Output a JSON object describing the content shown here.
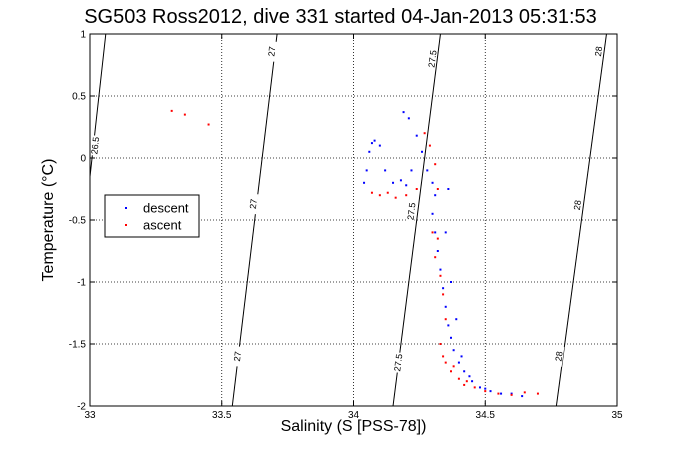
{
  "chart_data": {
    "type": "scatter",
    "title": "SG503 Ross2012, dive 331 started 04-Jan-2013 05:31:53",
    "xlabel": "Salinity (S [PSS-78])",
    "ylabel": "Temperature (°C)",
    "xlim": [
      33,
      35
    ],
    "ylim": [
      -2,
      1
    ],
    "x_ticks": [
      33,
      33.5,
      34,
      34.5,
      35
    ],
    "x_tick_labels": [
      "33",
      "33.5",
      "34",
      "34.5",
      "35"
    ],
    "y_ticks": [
      -2,
      -1.5,
      -1,
      -0.5,
      0,
      0.5,
      1
    ],
    "y_tick_labels": [
      "-2",
      "-1.5",
      "-1",
      "-0.5",
      "0",
      "0.5",
      "1"
    ],
    "grid": true,
    "legend_placement": "middle-left",
    "density_contours": [
      {
        "label": "26.5",
        "points": [
          [
            33.0,
            -0.15
          ],
          [
            33.06,
            1.0
          ]
        ],
        "label_at": [
          33.02,
          0.1
        ]
      },
      {
        "label": "27",
        "points": [
          [
            33.54,
            -2.0
          ],
          [
            33.71,
            1.0
          ]
        ],
        "label_at": [
          [
            33.56,
            -1.6
          ],
          [
            33.62,
            -0.37
          ],
          [
            33.69,
            0.86
          ]
        ]
      },
      {
        "label": "27.5",
        "points": [
          [
            34.15,
            -2.0
          ],
          [
            34.33,
            1.0
          ]
        ],
        "label_at": [
          [
            34.17,
            -1.65
          ],
          [
            34.22,
            -0.43
          ],
          [
            34.3,
            0.8
          ]
        ]
      },
      {
        "label": "28",
        "points": [
          [
            34.77,
            -2.0
          ],
          [
            34.96,
            1.0
          ]
        ],
        "label_at": [
          [
            34.78,
            -1.6
          ],
          [
            34.85,
            -0.38
          ],
          [
            34.93,
            0.86
          ]
        ]
      }
    ],
    "series": [
      {
        "name": "descent",
        "color": "#0000ff",
        "points": [
          [
            34.04,
            -0.2
          ],
          [
            34.05,
            -0.1
          ],
          [
            34.06,
            0.05
          ],
          [
            34.07,
            0.12
          ],
          [
            34.08,
            0.14
          ],
          [
            34.1,
            0.1
          ],
          [
            34.12,
            -0.1
          ],
          [
            34.15,
            -0.2
          ],
          [
            34.18,
            -0.18
          ],
          [
            34.2,
            -0.22
          ],
          [
            34.22,
            -0.1
          ],
          [
            34.19,
            0.37
          ],
          [
            34.21,
            0.32
          ],
          [
            34.24,
            0.18
          ],
          [
            34.26,
            0.05
          ],
          [
            34.28,
            -0.1
          ],
          [
            34.3,
            -0.2
          ],
          [
            34.31,
            -0.3
          ],
          [
            34.3,
            -0.45
          ],
          [
            34.31,
            -0.6
          ],
          [
            34.32,
            -0.75
          ],
          [
            34.33,
            -0.9
          ],
          [
            34.34,
            -1.05
          ],
          [
            34.35,
            -1.2
          ],
          [
            34.36,
            -1.35
          ],
          [
            34.37,
            -1.45
          ],
          [
            34.38,
            -1.55
          ],
          [
            34.4,
            -1.65
          ],
          [
            34.42,
            -1.72
          ],
          [
            34.45,
            -1.8
          ],
          [
            34.48,
            -1.85
          ],
          [
            34.52,
            -1.88
          ],
          [
            34.56,
            -1.9
          ],
          [
            34.6,
            -1.9
          ],
          [
            34.64,
            -1.92
          ],
          [
            34.36,
            -0.25
          ],
          [
            34.35,
            -0.6
          ],
          [
            34.37,
            -1.0
          ],
          [
            34.39,
            -1.3
          ],
          [
            34.41,
            -1.6
          ],
          [
            34.44,
            -1.76
          ],
          [
            34.5,
            -1.86
          ]
        ]
      },
      {
        "name": "ascent",
        "color": "#ff0000",
        "points": [
          [
            33.31,
            0.38
          ],
          [
            33.36,
            0.35
          ],
          [
            33.45,
            0.27
          ],
          [
            34.07,
            -0.28
          ],
          [
            34.1,
            -0.3
          ],
          [
            34.13,
            -0.28
          ],
          [
            34.16,
            -0.32
          ],
          [
            34.2,
            -0.3
          ],
          [
            34.24,
            -0.25
          ],
          [
            34.27,
            0.2
          ],
          [
            34.29,
            0.1
          ],
          [
            34.31,
            -0.05
          ],
          [
            34.32,
            -0.25
          ],
          [
            34.3,
            -0.6
          ],
          [
            34.31,
            -0.8
          ],
          [
            34.32,
            -0.65
          ],
          [
            34.33,
            -0.95
          ],
          [
            34.34,
            -1.1
          ],
          [
            34.35,
            -1.3
          ],
          [
            34.33,
            -1.5
          ],
          [
            34.35,
            -1.65
          ],
          [
            34.37,
            -1.72
          ],
          [
            34.4,
            -1.78
          ],
          [
            34.43,
            -1.8
          ],
          [
            34.46,
            -1.85
          ],
          [
            34.5,
            -1.88
          ],
          [
            34.55,
            -1.9
          ],
          [
            34.6,
            -1.91
          ],
          [
            34.65,
            -1.89
          ],
          [
            34.7,
            -1.9
          ],
          [
            34.34,
            -1.6
          ],
          [
            34.38,
            -1.68
          ],
          [
            34.42,
            -1.83
          ]
        ]
      }
    ]
  }
}
